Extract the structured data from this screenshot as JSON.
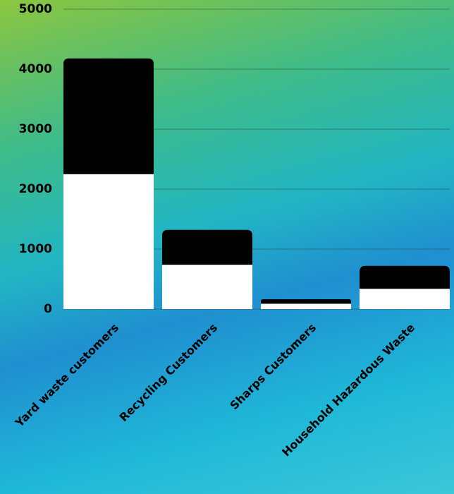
{
  "chart_data": {
    "type": "stacked_bar",
    "categories": [
      "Yard waste customers",
      "Recycling Customers",
      "Sharps Customers",
      "Household Hazardous Waste"
    ],
    "series": [
      {
        "color": "#ffffff",
        "values": [
          2250,
          740,
          90,
          340
        ]
      },
      {
        "color": "#000000",
        "values": [
          1930,
          580,
          75,
          380
        ]
      }
    ],
    "ylim": [
      0,
      5000
    ],
    "yticks": [
      0,
      1000,
      2000,
      3000,
      4000,
      5000
    ],
    "grid": true
  }
}
